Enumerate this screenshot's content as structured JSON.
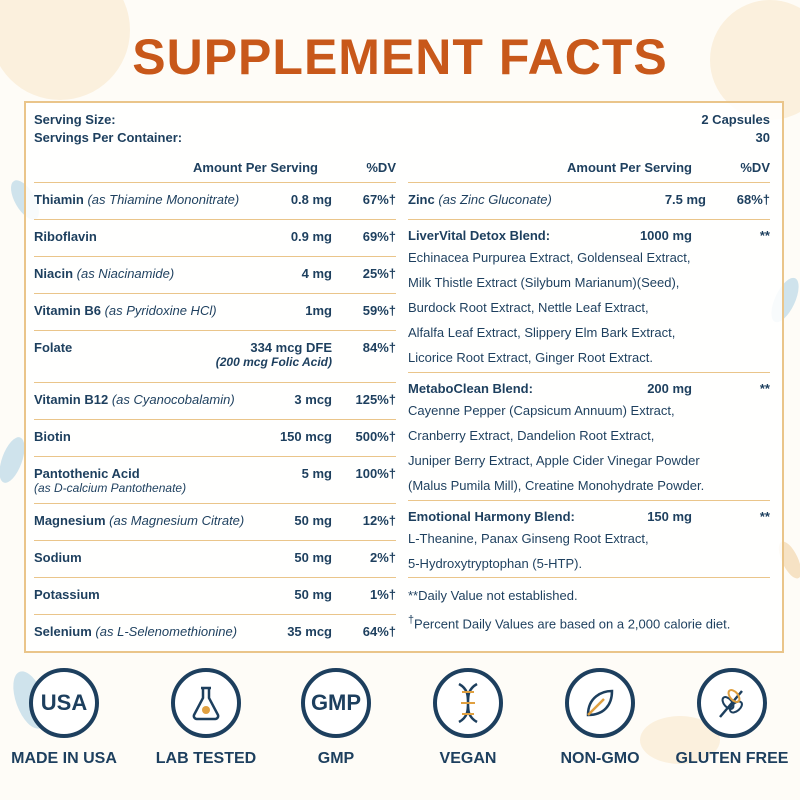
{
  "title": "SUPPLEMENT FACTS",
  "serving": {
    "size_label": "Serving Size:",
    "size_value": "2 Capsules",
    "per_container_label": "Servings Per Container:",
    "per_container_value": "30"
  },
  "headers": {
    "amount": "Amount Per Serving",
    "dv": "%DV"
  },
  "left_rows": [
    {
      "name": "Thiamin",
      "detail": "(as Thiamine Mononitrate)",
      "amount": "0.8 mg",
      "dv": "67%†"
    },
    {
      "name": "Riboflavin",
      "detail": "",
      "amount": "0.9 mg",
      "dv": "69%†"
    },
    {
      "name": "Niacin",
      "detail": "(as Niacinamide)",
      "amount": "4 mg",
      "dv": "25%†"
    },
    {
      "name": "Vitamin B6",
      "detail": "(as Pyridoxine HCl)",
      "amount": "1mg",
      "dv": "59%†"
    },
    {
      "name": "Folate",
      "detail": "",
      "amount": "334 mcg DFE",
      "amount_sub": "(200 mcg Folic Acid)",
      "dv": "84%†"
    },
    {
      "name": "Vitamin B12",
      "detail": "(as Cyanocobalamin)",
      "amount": "3 mcg",
      "dv": "125%†"
    },
    {
      "name": "Biotin",
      "detail": "",
      "amount": "150 mcg",
      "dv": "500%†"
    },
    {
      "name": "Pantothenic Acid",
      "detail": "",
      "name_sub": "(as D-calcium Pantothenate)",
      "amount": "5 mg",
      "dv": "100%†"
    },
    {
      "name": "Magnesium",
      "detail": "(as Magnesium Citrate)",
      "amount": "50 mg",
      "dv": "12%†"
    },
    {
      "name": "Sodium",
      "detail": "",
      "amount": "50 mg",
      "dv": "2%†"
    },
    {
      "name": "Potassium",
      "detail": "",
      "amount": "50 mg",
      "dv": "1%†"
    },
    {
      "name": "Selenium",
      "detail": "(as L-Selenomethionine)",
      "amount": "35 mcg",
      "dv": "64%†"
    }
  ],
  "zinc": {
    "name": "Zinc",
    "detail": "(as Zinc Gluconate)",
    "amount": "7.5 mg",
    "dv": "68%†"
  },
  "blends": [
    {
      "name": "LiverVital Detox Blend:",
      "amount": "1000 mg",
      "dv": "**",
      "lines": [
        "Echinacea Purpurea Extract, Goldenseal Extract,",
        "Milk Thistle Extract (Silybum Marianum)(Seed),",
        "Burdock Root Extract, Nettle Leaf Extract,",
        "Alfalfa Leaf Extract, Slippery Elm Bark Extract,",
        "Licorice Root Extract, Ginger Root Extract."
      ]
    },
    {
      "name": "MetaboClean Blend:",
      "amount": "200 mg",
      "dv": "**",
      "lines": [
        "Cayenne Pepper (Capsicum Annuum) Extract,",
        "Cranberry Extract, Dandelion Root Extract,",
        "Juniper Berry Extract, Apple Cider Vinegar Powder",
        "(Malus Pumila Mill), Creatine Monohydrate Powder."
      ]
    },
    {
      "name": "Emotional Harmony Blend:",
      "amount": "150 mg",
      "dv": "**",
      "lines": [
        "L-Theanine, Panax Ginseng Root Extract,",
        "5-Hydroxytryptophan (5-HTP)."
      ]
    }
  ],
  "notes": {
    "dv_not_established": "**Daily Value not established.",
    "dagger": "†",
    "percent_basis": "Percent Daily Values are based on a 2,000 calorie diet."
  },
  "badges": [
    {
      "icon": "usa-icon",
      "icon_text": "USA",
      "label": "MADE IN USA"
    },
    {
      "icon": "lab-flask-icon",
      "icon_text": "",
      "label": "LAB TESTED"
    },
    {
      "icon": "gmp-icon",
      "icon_text": "GMP",
      "label": "GMP"
    },
    {
      "icon": "dna-icon",
      "icon_text": "",
      "label": "VEGAN"
    },
    {
      "icon": "leaf-icon",
      "icon_text": "",
      "label": "NON-GMO"
    },
    {
      "icon": "wheat-icon",
      "icon_text": "",
      "label": "GLUTEN FREE"
    }
  ],
  "colors": {
    "title": "#c8581a",
    "text": "#1d3f5e",
    "border": "#eac58a"
  }
}
